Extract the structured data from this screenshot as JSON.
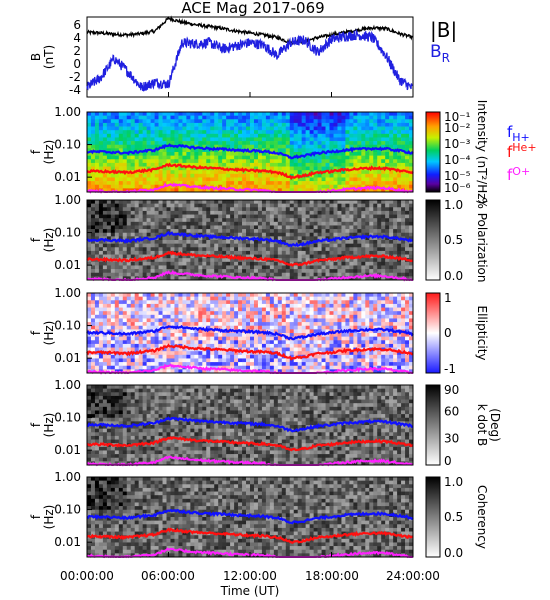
{
  "title": "ACE Mag 2017-069",
  "xlabel": "Time (UT)",
  "x_ticks": [
    "00:00:00",
    "06:00:00",
    "12:00:00",
    "18:00:00",
    "24:00:00"
  ],
  "colors": {
    "absB": "#000000",
    "BR": "#2020e0",
    "fH": "#1010ff",
    "fHe": "#ff1010",
    "fO": "#ff20ff"
  },
  "chart_data": [
    {
      "type": "line",
      "panel": "B",
      "ylabel": "B",
      "yunit": "(nT)",
      "y_ticks": [
        "6",
        "4",
        "2",
        "0",
        "-2",
        "-4"
      ],
      "ylim": [
        -5.5,
        7
      ],
      "x": [
        0,
        1,
        2,
        3,
        4,
        5,
        6,
        7,
        8,
        9,
        10,
        11,
        12,
        13,
        14,
        15,
        16,
        17,
        18,
        19,
        20,
        21,
        22,
        23,
        24
      ],
      "series": [
        {
          "name": "|B|",
          "values": [
            4.6,
            4.5,
            4.3,
            4.2,
            4.4,
            4.8,
            6.8,
            6.2,
            5.8,
            5.5,
            5.2,
            4.8,
            4.5,
            4.2,
            3.8,
            3.0,
            3.2,
            3.8,
            4.2,
            4.6,
            5.0,
            5.3,
            5.2,
            4.4,
            3.8
          ]
        },
        {
          "name": "B",
          "subscript": "R",
          "values": [
            -4.0,
            -2.5,
            0.5,
            -1.5,
            -4.0,
            -3.2,
            -3.5,
            3.0,
            2.8,
            3.0,
            2.0,
            2.5,
            3.0,
            2.6,
            1.0,
            3.0,
            3.4,
            1.5,
            3.5,
            4.0,
            4.2,
            3.8,
            1.0,
            -2.8,
            -4.2
          ]
        }
      ]
    },
    {
      "type": "heatmap",
      "panel": "Intensity",
      "ylabel": "f",
      "yunit": "(Hz)",
      "y_ticks": [
        "1.00",
        "0.10",
        "0.01"
      ],
      "colorbar_label": "Intensity (nT²/Hz)",
      "colorbar_ticks": [
        "10⁻¹",
        "10⁻²",
        "10⁻³",
        "10⁻⁴",
        "10⁻⁵",
        "10⁻⁶"
      ],
      "legend": [
        {
          "name": "f",
          "subscript": "H+"
        },
        {
          "name": "f",
          "subscript": "He+"
        },
        {
          "name": "f",
          "subscript": "O+"
        }
      ]
    },
    {
      "type": "heatmap",
      "panel": "Polarization",
      "ylabel": "f",
      "yunit": "(Hz)",
      "y_ticks": [
        "1.00",
        "0.10",
        "0.01"
      ],
      "colorbar_label": "% Polarization",
      "colorbar_ticks": [
        "1.0",
        "0.5",
        "0.0"
      ]
    },
    {
      "type": "heatmap",
      "panel": "Ellipticity",
      "ylabel": "f",
      "yunit": "(Hz)",
      "y_ticks": [
        "1.00",
        "0.10",
        "0.01"
      ],
      "colorbar_label": "Ellipticity",
      "colorbar_ticks": [
        "1",
        "0",
        "-1"
      ]
    },
    {
      "type": "heatmap",
      "panel": "kdotB",
      "ylabel": "f",
      "yunit": "(Hz)",
      "y_ticks": [
        "1.00",
        "0.10",
        "0.01"
      ],
      "colorbar_label": "k dot B",
      "colorbar_unit": "(Deg)",
      "colorbar_ticks": [
        "90",
        "60",
        "30",
        "0"
      ]
    },
    {
      "type": "heatmap",
      "panel": "Coherency",
      "ylabel": "f",
      "yunit": "(Hz)",
      "y_ticks": [
        "1.00",
        "0.10",
        "0.01"
      ],
      "colorbar_label": "Coherency",
      "colorbar_ticks": [
        "1.0",
        "0.5",
        "0.0"
      ]
    }
  ],
  "gyro_lines": {
    "x": [
      0,
      1,
      2,
      3,
      4,
      5,
      6,
      7,
      8,
      9,
      10,
      11,
      12,
      13,
      14,
      15,
      16,
      17,
      18,
      19,
      20,
      21,
      22,
      23,
      24
    ],
    "fH_plus": [
      0.06,
      0.06,
      0.058,
      0.055,
      0.062,
      0.068,
      0.095,
      0.088,
      0.08,
      0.075,
      0.072,
      0.068,
      0.065,
      0.062,
      0.055,
      0.04,
      0.045,
      0.055,
      0.06,
      0.068,
      0.072,
      0.076,
      0.074,
      0.065,
      0.055
    ],
    "fHe_plus": [
      0.015,
      0.015,
      0.0145,
      0.014,
      0.0155,
      0.017,
      0.024,
      0.022,
      0.02,
      0.019,
      0.018,
      0.017,
      0.016,
      0.0155,
      0.014,
      0.01,
      0.011,
      0.014,
      0.015,
      0.017,
      0.018,
      0.019,
      0.0185,
      0.016,
      0.014
    ],
    "fO_plus": [
      0.0038,
      0.0037,
      0.0036,
      0.0035,
      0.0039,
      0.0042,
      0.006,
      0.0055,
      0.005,
      0.0047,
      0.0045,
      0.0042,
      0.0041,
      0.0039,
      0.0035,
      0.0026,
      0.0028,
      0.0035,
      0.0038,
      0.0042,
      0.0045,
      0.0047,
      0.0046,
      0.004,
      0.0035
    ]
  }
}
